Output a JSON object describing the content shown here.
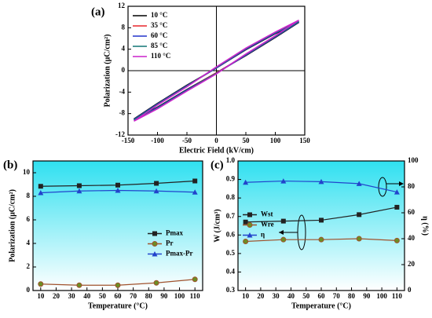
{
  "chart_data": [
    {
      "type": "line",
      "panel_label": "(a)",
      "xlabel": "Electric Field (kV/cm)",
      "ylabel": "Polarization (μC/cm²)",
      "xlim": [
        -150,
        150
      ],
      "xticks": [
        -150,
        -100,
        -50,
        0,
        50,
        100,
        150
      ],
      "ylim": [
        -12,
        12
      ],
      "yticks": [
        -12,
        -8,
        -4,
        0,
        4,
        8,
        12
      ],
      "legend": "upper left",
      "series": [
        {
          "name": "10 °C",
          "color": "#000000",
          "x": [
            -140,
            -100,
            -50,
            0,
            50,
            100,
            140,
            100,
            50,
            0,
            -50,
            -100,
            -140
          ],
          "values": [
            -9.0,
            -6.8,
            -3.5,
            -0.4,
            2.8,
            6.2,
            9.0,
            6.9,
            3.9,
            0.5,
            -2.7,
            -6.1,
            -9.0
          ]
        },
        {
          "name": "35 °C",
          "color": "#e8262b",
          "x": [
            -140,
            -100,
            -50,
            0,
            50,
            100,
            140,
            100,
            50,
            0,
            -50,
            -100,
            -140
          ],
          "values": [
            -9.1,
            -6.9,
            -3.6,
            -0.4,
            2.9,
            6.3,
            9.1,
            7.0,
            4.0,
            0.5,
            -2.8,
            -6.2,
            -9.1
          ]
        },
        {
          "name": "60 °C",
          "color": "#2233cc",
          "x": [
            -140,
            -100,
            -50,
            0,
            50,
            100,
            140,
            100,
            50,
            0,
            -50,
            -100,
            -140
          ],
          "values": [
            -9.1,
            -6.9,
            -3.6,
            -0.5,
            2.9,
            6.3,
            9.1,
            7.0,
            4.0,
            0.5,
            -2.8,
            -6.2,
            -9.1
          ]
        },
        {
          "name": "85 °C",
          "color": "#117777",
          "x": [
            -140,
            -100,
            -50,
            0,
            50,
            100,
            140,
            100,
            50,
            0,
            -50,
            -100,
            -140
          ],
          "values": [
            -9.2,
            -7.0,
            -3.7,
            -0.5,
            3.0,
            6.4,
            9.2,
            7.1,
            4.1,
            0.6,
            -2.9,
            -6.3,
            -9.2
          ]
        },
        {
          "name": "110 °C",
          "color": "#cc22cc",
          "x": [
            -140,
            -100,
            -50,
            0,
            50,
            100,
            140,
            100,
            50,
            0,
            -50,
            -100,
            -140
          ],
          "values": [
            -9.4,
            -7.1,
            -3.8,
            -0.6,
            3.1,
            6.5,
            9.4,
            7.2,
            4.2,
            0.7,
            -3.0,
            -6.4,
            -9.4
          ]
        }
      ]
    },
    {
      "type": "line",
      "panel_label": "(b)",
      "xlabel": "Temperature (°C)",
      "ylabel": "Polarization (μC/cm²)",
      "x": [
        10,
        35,
        60,
        85,
        110
      ],
      "xlim": [
        5,
        115
      ],
      "xticks": [
        10,
        20,
        30,
        40,
        50,
        60,
        70,
        80,
        90,
        100,
        110
      ],
      "ylim": [
        0,
        11
      ],
      "yticks": [
        0,
        2,
        4,
        6,
        8,
        10
      ],
      "legend": "center right",
      "series": [
        {
          "name": "Pmax",
          "color": "#222222",
          "marker": "square",
          "values": [
            8.85,
            8.9,
            8.95,
            9.1,
            9.3
          ]
        },
        {
          "name": "Pr",
          "color": "#a0522d",
          "marker": "circle",
          "values": [
            0.55,
            0.45,
            0.45,
            0.65,
            0.95
          ]
        },
        {
          "name": "Pmax-Pr",
          "color": "#2244cc",
          "marker": "triangle",
          "values": [
            8.3,
            8.45,
            8.5,
            8.45,
            8.35
          ]
        }
      ]
    },
    {
      "type": "line",
      "panel_label": "(c)",
      "xlabel": "Temperature (°C)",
      "ylabel": "W (J/cm³)",
      "y2label": "η (%)",
      "x": [
        10,
        35,
        60,
        85,
        110
      ],
      "xlim": [
        5,
        115
      ],
      "xticks": [
        10,
        20,
        30,
        40,
        50,
        60,
        70,
        80,
        90,
        100,
        110
      ],
      "ylim": [
        0.3,
        1.0
      ],
      "yticks": [
        0.3,
        0.4,
        0.5,
        0.6,
        0.7,
        0.8,
        0.9,
        {
          "value": 1,
          "label": "1.0"
        }
      ],
      "y2lim": [
        0,
        100
      ],
      "y2ticks": [
        0,
        20,
        40,
        60,
        80,
        100
      ],
      "legend": "center left",
      "series": [
        {
          "name": "Wst",
          "color": "#222222",
          "marker": "square",
          "values": [
            0.67,
            0.675,
            0.68,
            0.71,
            0.75
          ]
        },
        {
          "name": "Wre",
          "color": "#a0522d",
          "marker": "circle",
          "values": [
            0.565,
            0.575,
            0.575,
            0.58,
            0.57
          ]
        },
        {
          "name": "η",
          "color": "#2244cc",
          "marker": "triangle",
          "axis": "y2",
          "values": [
            83.5,
            84.5,
            84,
            82.5,
            76
          ]
        }
      ]
    }
  ]
}
